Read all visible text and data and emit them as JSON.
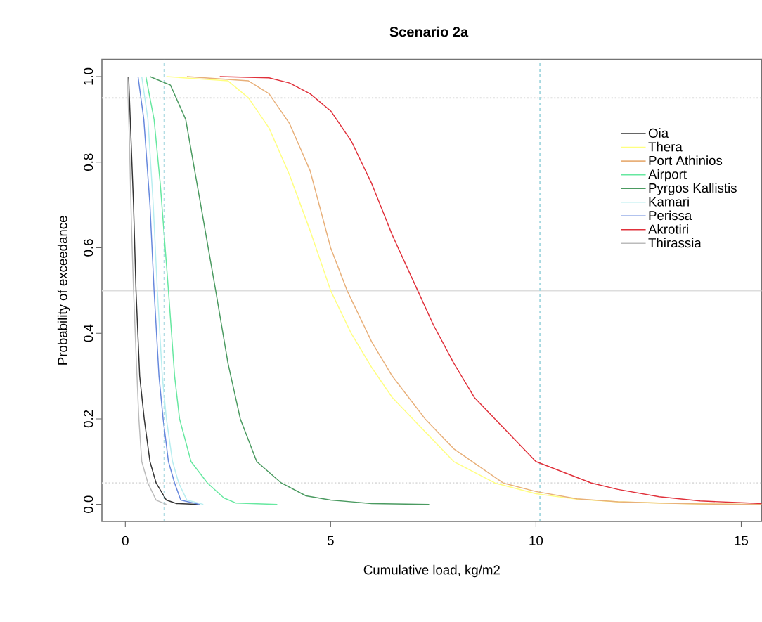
{
  "chart_data": {
    "type": "line",
    "title": "Scenario 2a",
    "xlabel": "Cumulative load, kg/m2",
    "ylabel": "Probability of exceedance",
    "xlim": [
      -0.57,
      15.5
    ],
    "ylim": [
      -0.04,
      1.04
    ],
    "xticks": [
      0,
      5,
      10,
      15
    ],
    "yticks": [
      {
        "value": 0,
        "label": "0.0"
      },
      {
        "value": 0.2,
        "label": "0.2"
      },
      {
        "value": 0.4,
        "label": "0.4"
      },
      {
        "value": 0.6,
        "label": "0.6"
      },
      {
        "value": 0.8,
        "label": "0.8"
      },
      {
        "value": 1,
        "label": "1.0"
      }
    ],
    "legend": "top right",
    "series": [
      {
        "name": "Oia",
        "color": "#333333",
        "x": [
          0.08,
          0.12,
          0.2,
          0.26,
          0.35,
          0.46,
          0.6,
          0.75,
          1.0,
          1.25,
          1.8
        ],
        "values": [
          1,
          0.9,
          0.7,
          0.5,
          0.3,
          0.2,
          0.1,
          0.05,
          0.01,
          0.002,
          0
        ]
      },
      {
        "name": "Thera",
        "color": "#ffff80",
        "x": [
          1.0,
          2.5,
          3.0,
          3.5,
          4.0,
          4.5,
          5.0,
          5.5,
          6.0,
          6.5,
          7.0,
          8.0,
          9.0,
          10,
          11,
          12,
          13,
          14,
          15.4
        ],
        "values": [
          1,
          0.99,
          0.95,
          0.88,
          0.77,
          0.64,
          0.5,
          0.4,
          0.32,
          0.25,
          0.2,
          0.1,
          0.05,
          0.025,
          0.012,
          0.006,
          0.003,
          0.001,
          0
        ]
      },
      {
        "name": "Port Athinios",
        "color": "#e8b07a",
        "x": [
          1.5,
          3.0,
          3.5,
          4.0,
          4.5,
          5.0,
          5.4,
          6.0,
          6.5,
          7.3,
          8.0,
          9.2,
          10,
          11,
          12,
          13,
          14,
          15.5
        ],
        "values": [
          1,
          0.99,
          0.96,
          0.89,
          0.78,
          0.6,
          0.5,
          0.38,
          0.3,
          0.2,
          0.13,
          0.05,
          0.03,
          0.013,
          0.006,
          0.003,
          0.001,
          0
        ]
      },
      {
        "name": "Airport",
        "color": "#66e8a0",
        "x": [
          0.5,
          0.7,
          0.85,
          1.05,
          1.2,
          1.32,
          1.6,
          2.0,
          2.4,
          2.7,
          3.7
        ],
        "values": [
          1,
          0.9,
          0.75,
          0.5,
          0.3,
          0.2,
          0.1,
          0.05,
          0.015,
          0.003,
          0
        ]
      },
      {
        "name": "Pyrgos Kallistis",
        "color": "#4a9a60",
        "x": [
          0.6,
          1.1,
          1.47,
          1.8,
          2.2,
          2.5,
          2.8,
          3.2,
          3.8,
          4.4,
          5.0,
          6.0,
          7.4
        ],
        "values": [
          1,
          0.98,
          0.9,
          0.72,
          0.5,
          0.33,
          0.2,
          0.1,
          0.05,
          0.02,
          0.01,
          0.002,
          0
        ]
      },
      {
        "name": "Kamari",
        "color": "#b8eef0",
        "x": [
          0.4,
          0.55,
          0.68,
          0.78,
          0.9,
          1.0,
          1.15,
          1.3,
          1.5,
          1.9
        ],
        "values": [
          1,
          0.9,
          0.7,
          0.5,
          0.3,
          0.2,
          0.1,
          0.05,
          0.01,
          0
        ]
      },
      {
        "name": "Perissa",
        "color": "#6688dd",
        "x": [
          0.31,
          0.45,
          0.6,
          0.7,
          0.82,
          0.92,
          1.05,
          1.2,
          1.35,
          1.8
        ],
        "values": [
          1,
          0.9,
          0.7,
          0.5,
          0.3,
          0.2,
          0.1,
          0.05,
          0.01,
          0
        ]
      },
      {
        "name": "Akrotiri",
        "color": "#e0303a",
        "x": [
          2.3,
          3.5,
          4.0,
          4.5,
          5.0,
          5.5,
          6.0,
          6.5,
          7.12,
          7.5,
          8.0,
          8.5,
          9.0,
          10.0,
          11.35,
          12,
          13,
          14,
          15,
          15.5
        ],
        "values": [
          1,
          0.997,
          0.985,
          0.96,
          0.92,
          0.85,
          0.75,
          0.63,
          0.5,
          0.42,
          0.33,
          0.25,
          0.2,
          0.1,
          0.05,
          0.035,
          0.018,
          0.008,
          0.004,
          0.002
        ]
      },
      {
        "name": "Thirassia",
        "color": "#bbbbbb",
        "x": [
          0.05,
          0.1,
          0.15,
          0.2,
          0.27,
          0.33,
          0.4,
          0.55,
          0.75,
          1.0
        ],
        "values": [
          1,
          0.85,
          0.65,
          0.5,
          0.33,
          0.2,
          0.1,
          0.05,
          0.01,
          0
        ]
      }
    ],
    "ref_lines": [
      {
        "axis": "y",
        "value": 0.95,
        "color": "#dddddd",
        "line_style": "dotted"
      },
      {
        "axis": "y",
        "value": 0.05,
        "color": "#dddddd",
        "line_style": "dotted"
      },
      {
        "axis": "y",
        "value": 0.5,
        "color": "#dddddd",
        "line_style": "solid"
      },
      {
        "axis": "x",
        "value": 0.95,
        "color": "#a6d8e0",
        "line_style": "dashed"
      },
      {
        "axis": "x",
        "value": 10.1,
        "color": "#a6d8e0",
        "line_style": "dashed"
      }
    ]
  }
}
